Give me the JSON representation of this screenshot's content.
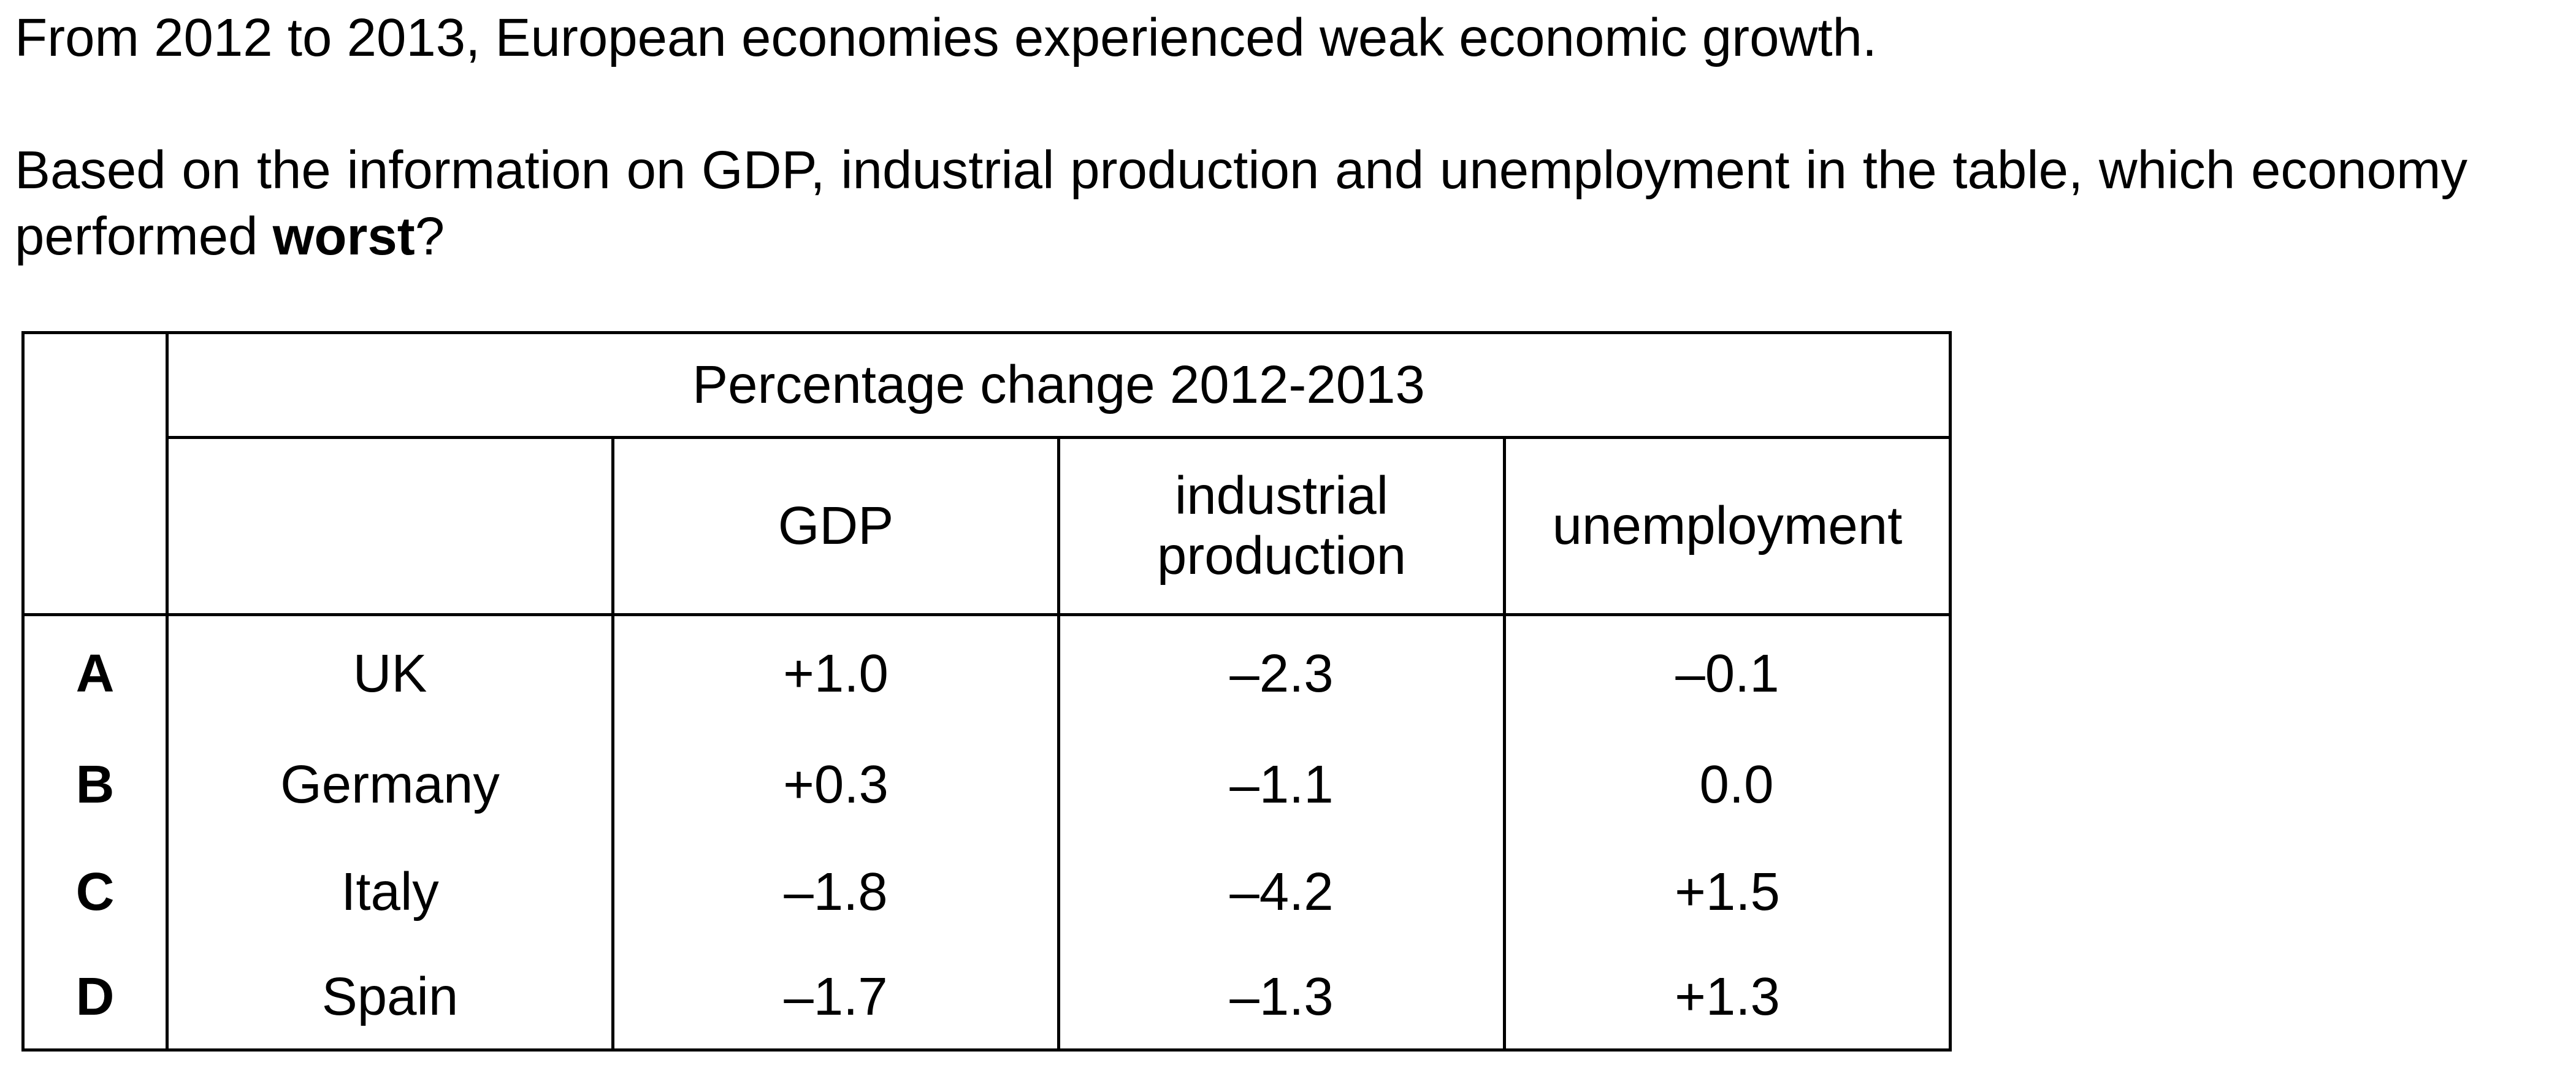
{
  "question": {
    "intro": "From 2012 to 2013, European economies experienced weak economic growth.",
    "prompt_before": "Based on the information on GDP, industrial production and unemployment in the table, which economy performed ",
    "prompt_bold": "worst",
    "prompt_after": "?"
  },
  "table": {
    "group_header": "Percentage change 2012-2013",
    "columns": [
      "GDP",
      "industrial",
      "production",
      "unemployment"
    ],
    "rows": [
      {
        "letter": "A",
        "country": "UK",
        "gdp": "+1.0",
        "industrial": "–2.3",
        "unemployment": "–0.1"
      },
      {
        "letter": "B",
        "country": "Germany",
        "gdp": "+0.3",
        "industrial": "–1.1",
        "unemployment": "0.0"
      },
      {
        "letter": "C",
        "country": "Italy",
        "gdp": "–1.8",
        "industrial": "–4.2",
        "unemployment": "+1.5"
      },
      {
        "letter": "D",
        "country": "Spain",
        "gdp": "–1.7",
        "industrial": "–1.3",
        "unemployment": "+1.3"
      }
    ]
  }
}
